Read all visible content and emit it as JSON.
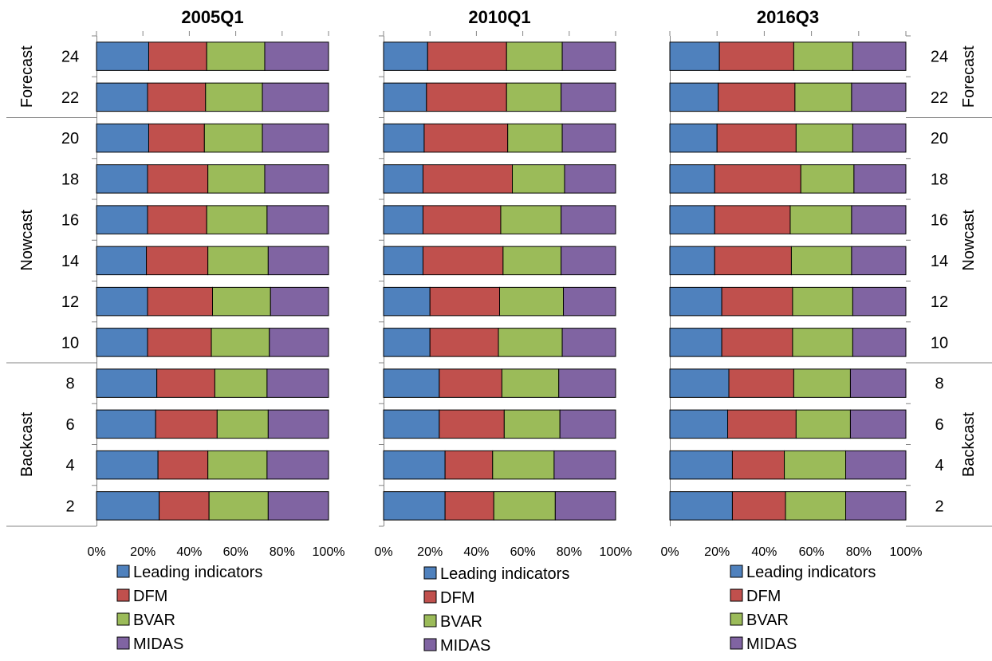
{
  "chart_data": [
    {
      "type": "bar",
      "stacked": "percent",
      "orientation": "horizontal",
      "title": "2005Q1",
      "categories": [
        "24",
        "22",
        "20",
        "18",
        "16",
        "14",
        "12",
        "10",
        "8",
        "6",
        "4",
        "2"
      ],
      "groups": [
        {
          "label": "Forecast",
          "categories": [
            "24",
            "22"
          ]
        },
        {
          "label": "Nowcast",
          "categories": [
            "20",
            "18",
            "16",
            "14",
            "12",
            "10"
          ]
        },
        {
          "label": "Backcast",
          "categories": [
            "8",
            "6",
            "4",
            "2"
          ]
        }
      ],
      "series": [
        {
          "name": "Leading indicators",
          "color": "#4F81BD",
          "values": [
            22.5,
            22,
            22.5,
            22,
            22,
            21.5,
            22,
            22,
            26,
            25.5,
            26.5,
            27
          ]
        },
        {
          "name": "DFM",
          "color": "#C0504D",
          "values": [
            25,
            25,
            24,
            26,
            25.5,
            26.5,
            28,
            27.5,
            25,
            26.5,
            21.5,
            21.5
          ]
        },
        {
          "name": "BVAR",
          "color": "#9BBB59",
          "values": [
            25,
            24.5,
            25,
            24.5,
            26,
            26,
            25,
            25,
            22.5,
            22,
            25.5,
            25.5
          ]
        },
        {
          "name": "MIDAS",
          "color": "#8064A2",
          "values": [
            27.5,
            28.5,
            28.5,
            27.5,
            26.5,
            26,
            25,
            25.5,
            26.5,
            26,
            26.5,
            26
          ]
        }
      ],
      "xlim": [
        0,
        100
      ],
      "xticks": [
        "0%",
        "20%",
        "40%",
        "60%",
        "80%",
        "100%"
      ],
      "legend": "bottom"
    },
    {
      "type": "bar",
      "stacked": "percent",
      "orientation": "horizontal",
      "title": "2010Q1",
      "categories": [
        "24",
        "22",
        "20",
        "18",
        "16",
        "14",
        "12",
        "10",
        "8",
        "6",
        "4",
        "2"
      ],
      "series": [
        {
          "name": "Leading indicators",
          "color": "#4F81BD",
          "values": [
            19,
            18.5,
            17.5,
            17,
            17,
            17,
            20,
            20,
            24,
            24,
            26.5,
            26.5
          ]
        },
        {
          "name": "DFM",
          "color": "#C0504D",
          "values": [
            34,
            34.5,
            36,
            38.5,
            33.5,
            34.5,
            30,
            29.5,
            27,
            28,
            20.5,
            21
          ]
        },
        {
          "name": "BVAR",
          "color": "#9BBB59",
          "values": [
            24,
            23.5,
            23.5,
            22.5,
            26,
            25,
            27.5,
            27.5,
            24.5,
            24,
            26.5,
            26.5
          ]
        },
        {
          "name": "MIDAS",
          "color": "#8064A2",
          "values": [
            23,
            23.5,
            23,
            22,
            23.5,
            23.5,
            22.5,
            23,
            24.5,
            24,
            26.5,
            26
          ]
        }
      ],
      "xlim": [
        0,
        100
      ],
      "xticks": [
        "0%",
        "20%",
        "40%",
        "60%",
        "80%",
        "100%"
      ],
      "legend": "bottom"
    },
    {
      "type": "bar",
      "stacked": "percent",
      "orientation": "horizontal",
      "title": "2016Q3",
      "categories": [
        "24",
        "22",
        "20",
        "18",
        "16",
        "14",
        "12",
        "10",
        "8",
        "6",
        "4",
        "2"
      ],
      "groups": [
        {
          "label": "Forecast",
          "categories": [
            "24",
            "22"
          ]
        },
        {
          "label": "Nowcast",
          "categories": [
            "20",
            "18",
            "16",
            "14",
            "12",
            "10"
          ]
        },
        {
          "label": "Backcast",
          "categories": [
            "8",
            "6",
            "4",
            "2"
          ]
        }
      ],
      "series": [
        {
          "name": "Leading indicators",
          "color": "#4F81BD",
          "values": [
            21,
            20.5,
            20,
            19,
            19,
            19,
            22,
            22,
            25,
            24.5,
            26.5,
            26.5
          ]
        },
        {
          "name": "DFM",
          "color": "#C0504D",
          "values": [
            31.5,
            32.5,
            33.5,
            36.5,
            32,
            32.5,
            30,
            30,
            27.5,
            29,
            22,
            22.5
          ]
        },
        {
          "name": "BVAR",
          "color": "#9BBB59",
          "values": [
            25,
            24,
            24,
            22.5,
            26,
            25.5,
            25.5,
            25.5,
            24,
            23,
            26,
            25.5
          ]
        },
        {
          "name": "MIDAS",
          "color": "#8064A2",
          "values": [
            22.5,
            23,
            22.5,
            22,
            23,
            23,
            22.5,
            22.5,
            23.5,
            23.5,
            25.5,
            25.5
          ]
        }
      ],
      "xlim": [
        0,
        100
      ],
      "xticks": [
        "0%",
        "20%",
        "40%",
        "60%",
        "80%",
        "100%"
      ],
      "legend": "bottom"
    }
  ]
}
